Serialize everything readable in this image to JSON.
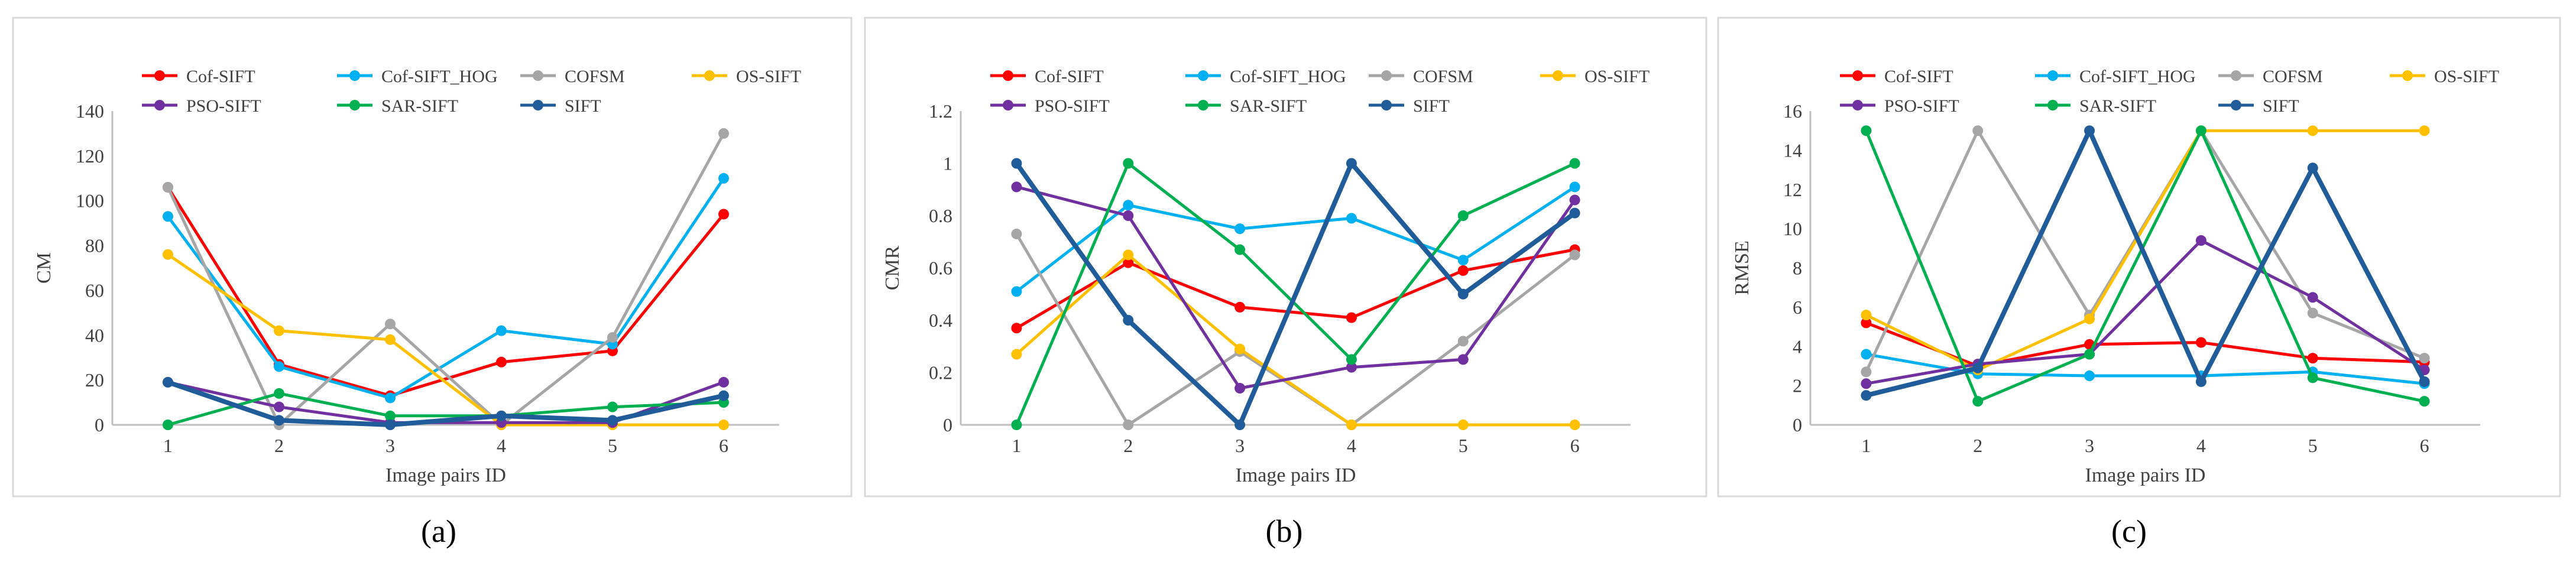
{
  "chart_data": [
    {
      "type": "line",
      "panel_label": "(a)",
      "xlabel": "Image pairs ID",
      "ylabel": "CM",
      "x": [
        1,
        2,
        3,
        4,
        5,
        6
      ],
      "xticks": [
        "1",
        "2",
        "3",
        "4",
        "5",
        "6"
      ],
      "ylim": [
        0,
        140
      ],
      "yticks": [
        "0",
        "20",
        "40",
        "60",
        "80",
        "100",
        "120",
        "140"
      ],
      "grid": false,
      "series": [
        {
          "name": "Cof-SIFT",
          "color": "#ff0000",
          "values": [
            106,
            27,
            13,
            28,
            33,
            94
          ]
        },
        {
          "name": "Cof-SIFT_HOG",
          "color": "#00b0f0",
          "values": [
            93,
            26,
            12,
            42,
            36,
            110
          ]
        },
        {
          "name": "COFSM",
          "color": "#a6a6a6",
          "values": [
            106,
            0,
            45,
            0,
            39,
            130
          ]
        },
        {
          "name": "OS-SIFT",
          "color": "#ffc000",
          "values": [
            76,
            42,
            38,
            0,
            0,
            0
          ]
        },
        {
          "name": "PSO-SIFT",
          "color": "#7030a0",
          "values": [
            19,
            8,
            1,
            1,
            1,
            19
          ]
        },
        {
          "name": "SAR-SIFT",
          "color": "#00b050",
          "values": [
            0,
            14,
            4,
            4,
            8,
            10
          ]
        },
        {
          "name": "SIFT",
          "color": "#1f5c99",
          "values": [
            19,
            2,
            0,
            4,
            2,
            13
          ]
        }
      ]
    },
    {
      "type": "line",
      "panel_label": "(b)",
      "xlabel": "Image pairs ID",
      "ylabel": "CMR",
      "x": [
        1,
        2,
        3,
        4,
        5,
        6
      ],
      "xticks": [
        "1",
        "2",
        "3",
        "4",
        "5",
        "6"
      ],
      "ylim": [
        0,
        1.2
      ],
      "yticks": [
        "0",
        "0.2",
        "0.4",
        "0.6",
        "0.8",
        "1",
        "1.2"
      ],
      "grid": false,
      "series": [
        {
          "name": "Cof-SIFT",
          "color": "#ff0000",
          "values": [
            0.37,
            0.62,
            0.45,
            0.41,
            0.59,
            0.67
          ]
        },
        {
          "name": "Cof-SIFT_HOG",
          "color": "#00b0f0",
          "values": [
            0.51,
            0.84,
            0.75,
            0.79,
            0.63,
            0.91
          ]
        },
        {
          "name": "COFSM",
          "color": "#a6a6a6",
          "values": [
            0.73,
            0.0,
            0.28,
            0.0,
            0.32,
            0.65
          ]
        },
        {
          "name": "OS-SIFT",
          "color": "#ffc000",
          "values": [
            0.27,
            0.65,
            0.29,
            0.0,
            0.0,
            0.0
          ]
        },
        {
          "name": "PSO-SIFT",
          "color": "#7030a0",
          "values": [
            0.91,
            0.8,
            0.14,
            0.22,
            0.25,
            0.86
          ]
        },
        {
          "name": "SAR-SIFT",
          "color": "#00b050",
          "values": [
            0.0,
            1.0,
            0.67,
            0.25,
            0.8,
            1.0
          ]
        },
        {
          "name": "SIFT",
          "color": "#1f5c99",
          "values": [
            1.0,
            0.4,
            0.0,
            1.0,
            0.5,
            0.81
          ]
        }
      ]
    },
    {
      "type": "line",
      "panel_label": "(c)",
      "xlabel": "Image pairs ID",
      "ylabel": "RMSE",
      "x": [
        1,
        2,
        3,
        4,
        5,
        6
      ],
      "xticks": [
        "1",
        "2",
        "3",
        "4",
        "5",
        "6"
      ],
      "ylim": [
        0,
        16
      ],
      "yticks": [
        "0",
        "2",
        "4",
        "6",
        "8",
        "10",
        "12",
        "14",
        "16"
      ],
      "grid": false,
      "series": [
        {
          "name": "Cof-SIFT",
          "color": "#ff0000",
          "values": [
            5.2,
            3.0,
            4.1,
            4.2,
            3.4,
            3.2
          ]
        },
        {
          "name": "Cof-SIFT_HOG",
          "color": "#00b0f0",
          "values": [
            3.6,
            2.6,
            2.5,
            2.5,
            2.7,
            2.1
          ]
        },
        {
          "name": "COFSM",
          "color": "#a6a6a6",
          "values": [
            2.7,
            15.0,
            5.6,
            15.0,
            5.7,
            3.4
          ]
        },
        {
          "name": "OS-SIFT",
          "color": "#ffc000",
          "values": [
            5.6,
            2.8,
            5.4,
            15.0,
            15.0,
            15.0
          ]
        },
        {
          "name": "PSO-SIFT",
          "color": "#7030a0",
          "values": [
            2.1,
            3.1,
            3.6,
            9.4,
            6.5,
            2.8
          ]
        },
        {
          "name": "SAR-SIFT",
          "color": "#00b050",
          "values": [
            15.0,
            1.2,
            3.6,
            15.0,
            2.4,
            1.2
          ]
        },
        {
          "name": "SIFT",
          "color": "#1f5c99",
          "values": [
            1.5,
            2.9,
            15.0,
            2.2,
            13.1,
            2.2
          ]
        }
      ]
    }
  ]
}
